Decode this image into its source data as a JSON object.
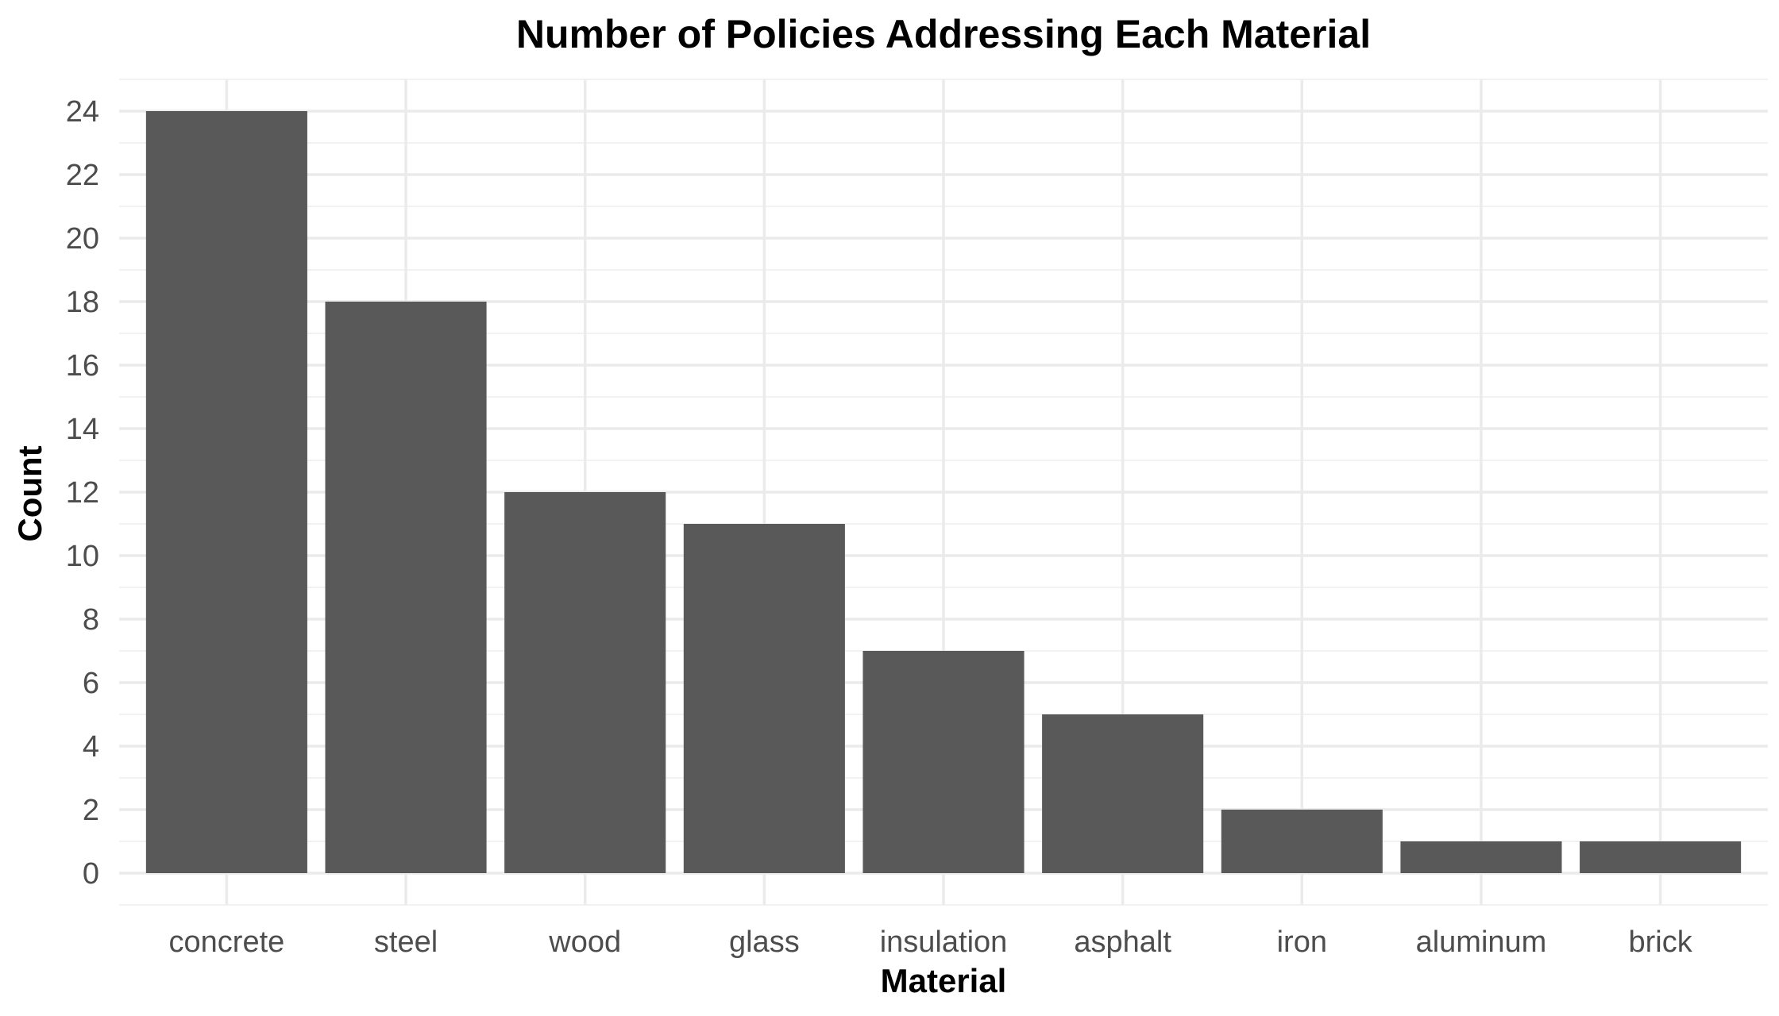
{
  "chart_data": {
    "type": "bar",
    "title": "Number of Policies Addressing Each Material",
    "xlabel": "Material",
    "ylabel": "Count",
    "categories": [
      "concrete",
      "steel",
      "wood",
      "glass",
      "insulation",
      "asphalt",
      "iron",
      "aluminum",
      "brick"
    ],
    "values": [
      24,
      18,
      12,
      11,
      7,
      5,
      2,
      1,
      1
    ],
    "ylim": [
      -1,
      25
    ],
    "yticks": [
      "0",
      "2",
      "4",
      "6",
      "8",
      "10",
      "12",
      "14",
      "16",
      "18",
      "20",
      "22",
      "24"
    ],
    "grid": true,
    "legend": "none",
    "bar_color": "#595959"
  }
}
